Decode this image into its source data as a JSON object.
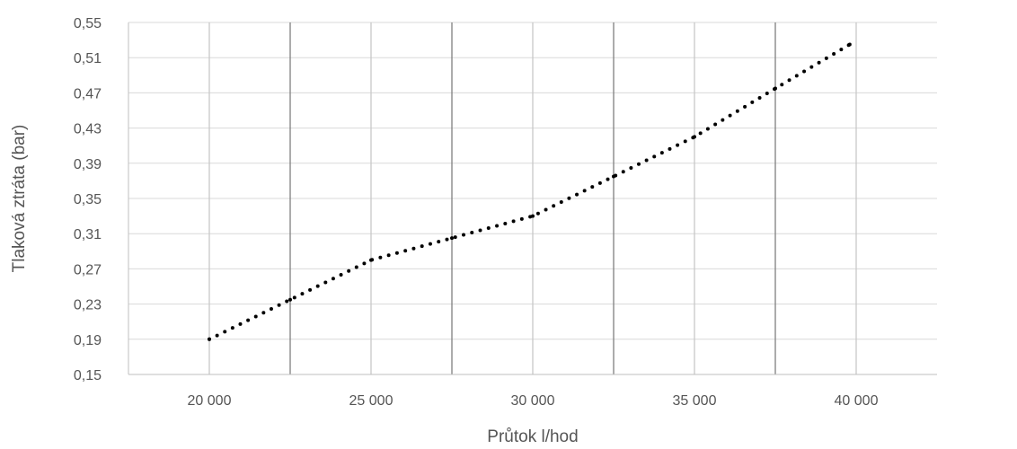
{
  "chart_data": {
    "type": "line",
    "title": "",
    "xlabel": "Průtok  l/hod",
    "ylabel": "Tlaková ztráta  (bar)",
    "xlim": [
      17500,
      42500
    ],
    "ylim": [
      0.15,
      0.55
    ],
    "x_ticks": [
      20000,
      25000,
      30000,
      35000,
      40000
    ],
    "x_tick_labels": [
      "20 000",
      "25 000",
      "30 000",
      "35 000",
      "40 000"
    ],
    "x_minor_gridlines": [
      22500,
      27500,
      32500,
      37500
    ],
    "y_ticks": [
      0.15,
      0.19,
      0.23,
      0.27,
      0.31,
      0.35,
      0.39,
      0.43,
      0.47,
      0.51,
      0.55
    ],
    "y_tick_labels": [
      "0,15",
      "0,19",
      "0,23",
      "0,27",
      "0,31",
      "0,35",
      "0,39",
      "0,43",
      "0,47",
      "0,51",
      "0,55"
    ],
    "grid": true,
    "legend": "none",
    "line_style": "dotted",
    "line_color": "#000000",
    "series": [
      {
        "x": [
          20000,
          22500,
          25000,
          27500,
          30000,
          32500,
          35000,
          37500,
          39800
        ],
        "y": [
          0.19,
          0.235,
          0.28,
          0.305,
          0.33,
          0.375,
          0.42,
          0.475,
          0.525
        ]
      }
    ]
  }
}
